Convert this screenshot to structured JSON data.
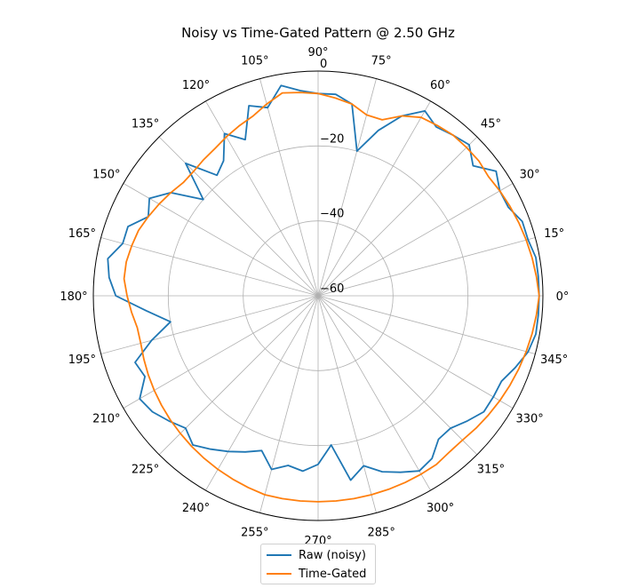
{
  "chart_data": {
    "type": "line",
    "projection": "polar",
    "title": "Noisy vs Time-Gated Pattern @ 2.50 GHz",
    "theta_unit": "degrees",
    "theta_ticks": [
      "0°",
      "15°",
      "30°",
      "45°",
      "60°",
      "75°",
      "90°",
      "105°",
      "120°",
      "135°",
      "150°",
      "165°",
      "180°",
      "195°",
      "210°",
      "225°",
      "240°",
      "255°",
      "270°",
      "285°",
      "300°",
      "315°",
      "330°",
      "345°"
    ],
    "r_ticks": [
      "−60",
      "−40",
      "−20",
      "0"
    ],
    "r_tick_values": [
      -60,
      -40,
      -20,
      0
    ],
    "rlim": [
      -60,
      0
    ],
    "grid": true,
    "legend_position": "bottom-center",
    "theta_step": 5,
    "series": [
      {
        "name": "Raw (noisy)",
        "color": "#1f77b4",
        "theta": [
          0,
          5,
          10,
          15,
          20,
          25,
          30,
          35,
          40,
          45,
          50,
          55,
          60,
          65,
          70,
          75,
          80,
          85,
          90,
          95,
          100,
          105,
          110,
          115,
          120,
          125,
          130,
          135,
          140,
          145,
          150,
          155,
          160,
          165,
          170,
          175,
          180,
          185,
          190,
          195,
          200,
          205,
          210,
          215,
          220,
          225,
          230,
          235,
          240,
          245,
          250,
          255,
          260,
          265,
          270,
          275,
          280,
          285,
          290,
          295,
          300,
          305,
          310,
          315,
          320,
          325,
          330,
          335,
          340,
          345,
          350,
          355
        ],
        "values": [
          -1,
          -1,
          -1,
          -2,
          -2,
          -4,
          -4,
          -2,
          -6,
          -3,
          -4,
          -5,
          -3,
          -7,
          -13,
          -20,
          -8,
          -6,
          -6,
          -5,
          -3,
          -8,
          -6,
          -14,
          -10,
          -16,
          -18,
          -10,
          -20,
          -12,
          -8,
          -10,
          -6,
          -6,
          -3,
          -4,
          -6,
          -14,
          -20,
          -14,
          -8,
          -9,
          -5,
          -6,
          -8,
          -10,
          -8,
          -10,
          -12,
          -14,
          -16,
          -12,
          -14,
          -13,
          -15,
          -20,
          -10,
          -13,
          -10,
          -8,
          -6,
          -7,
          -10,
          -10,
          -8,
          -6,
          -6,
          -6,
          -4,
          -2,
          -1,
          -1
        ]
      },
      {
        "name": "Time-Gated",
        "color": "#ff7f0e",
        "theta": [
          0,
          5,
          10,
          15,
          20,
          25,
          30,
          35,
          40,
          45,
          50,
          55,
          60,
          65,
          70,
          75,
          80,
          85,
          90,
          95,
          100,
          105,
          110,
          115,
          120,
          125,
          130,
          135,
          140,
          145,
          150,
          155,
          160,
          165,
          170,
          175,
          180,
          185,
          190,
          195,
          200,
          205,
          210,
          215,
          220,
          225,
          230,
          235,
          240,
          245,
          250,
          255,
          260,
          265,
          270,
          275,
          280,
          285,
          290,
          295,
          300,
          305,
          310,
          315,
          320,
          325,
          330,
          335,
          340,
          345,
          350,
          355
        ],
        "values": [
          -1,
          -1.5,
          -2,
          -2.5,
          -3,
          -3.5,
          -4,
          -4.5,
          -4,
          -4,
          -4,
          -4.5,
          -5,
          -7,
          -10,
          -10,
          -8,
          -7,
          -6,
          -5.5,
          -5,
          -7,
          -9,
          -10,
          -11,
          -12,
          -12.5,
          -13,
          -13,
          -12,
          -11,
          -10,
          -9,
          -8.5,
          -8,
          -8,
          -9,
          -10,
          -11,
          -11,
          -10.5,
          -10,
          -9.5,
          -9,
          -8.5,
          -8,
          -7.5,
          -7,
          -6.5,
          -6,
          -5.5,
          -5,
          -5,
          -5,
          -5,
          -5,
          -5,
          -5,
          -5,
          -5,
          -5,
          -5,
          -5.5,
          -5.5,
          -5,
          -4.5,
          -4,
          -3.5,
          -3,
          -2.5,
          -2,
          -1.5
        ]
      }
    ]
  },
  "legend": {
    "items": [
      {
        "label": "Raw (noisy)",
        "color": "#1f77b4"
      },
      {
        "label": "Time-Gated",
        "color": "#ff7f0e"
      }
    ]
  }
}
